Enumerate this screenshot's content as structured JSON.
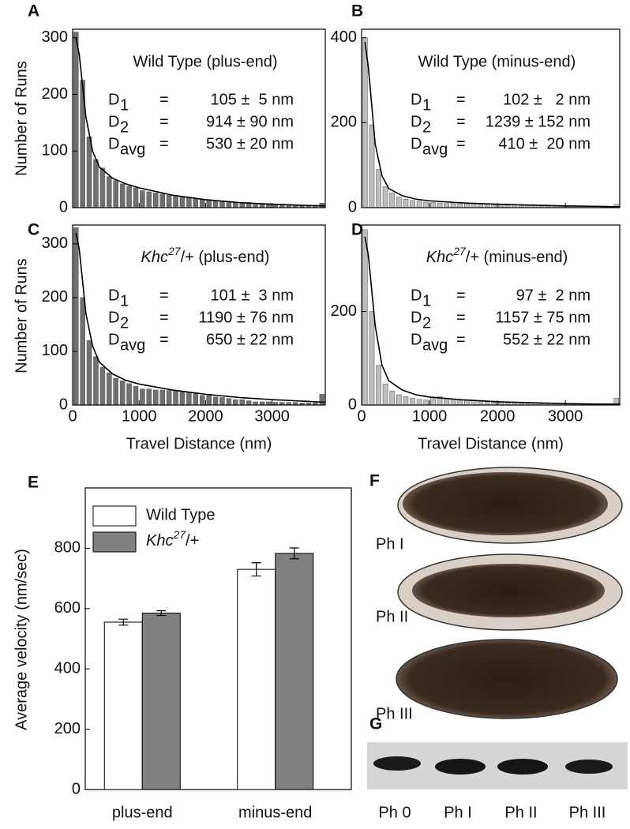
{
  "chart_data": [
    {
      "type": "histogram",
      "panel": "A",
      "title": "Wild Type (plus-end)",
      "ylabel": "Number of Runs",
      "color": "#707070",
      "bins": [
        0,
        100,
        200,
        300,
        400,
        500,
        600,
        700,
        800,
        900,
        1000,
        1100,
        1200,
        1300,
        1400,
        1500,
        1600,
        1700,
        1800,
        1900,
        2000,
        2100,
        2200,
        2300,
        2400,
        2500,
        2600,
        2700,
        2800,
        2900,
        3000,
        3100,
        3200,
        3300,
        3400,
        3500,
        3600,
        3700,
        3800
      ],
      "counts": [
        310,
        225,
        125,
        85,
        70,
        55,
        48,
        42,
        38,
        35,
        30,
        28,
        26,
        24,
        22,
        20,
        20,
        18,
        16,
        15,
        14,
        12,
        12,
        11,
        10,
        9,
        9,
        8,
        7,
        7,
        6,
        6,
        5,
        5,
        4,
        4,
        4,
        8
      ],
      "fit": {
        "x": [
          50,
          100,
          200,
          300,
          400,
          600,
          800,
          1000,
          1500,
          2000,
          2500,
          3000,
          3500,
          3800
        ],
        "y": [
          300,
          270,
          160,
          100,
          72,
          52,
          42,
          35,
          22,
          14,
          9,
          6,
          4,
          3
        ]
      },
      "xlim": [
        0,
        3800
      ],
      "xticks": [
        0,
        1000,
        2000,
        3000
      ],
      "show_xtick_labels": false,
      "ylim": [
        0,
        315
      ],
      "yticks": [
        0,
        100,
        200,
        300
      ],
      "stats": [
        {
          "symbol": "D",
          "subscript": "1",
          "equals": "=",
          "text": "105 ±  5 nm"
        },
        {
          "symbol": "D",
          "subscript": "2",
          "equals": "=",
          "text": "914 ± 90 nm"
        },
        {
          "symbol": "D",
          "subscript": "avg",
          "equals": "=",
          "text": "530 ± 20 nm"
        }
      ]
    },
    {
      "type": "histogram",
      "panel": "B",
      "title": "Wild Type (minus-end)",
      "color": "#bdbdbd",
      "bins": [
        0,
        100,
        200,
        300,
        400,
        500,
        600,
        700,
        800,
        900,
        1000,
        1100,
        1200,
        1300,
        1400,
        1500,
        1600,
        1700,
        1800,
        1900,
        2000,
        2100,
        2200,
        2300,
        2400,
        2500,
        2600,
        2700,
        2800,
        2900,
        3000,
        3100,
        3200,
        3300,
        3400,
        3500,
        3600,
        3700,
        3800
      ],
      "counts": [
        400,
        195,
        90,
        50,
        35,
        25,
        20,
        17,
        15,
        13,
        12,
        11,
        10,
        10,
        9,
        9,
        9,
        8,
        8,
        7,
        7,
        6,
        6,
        5,
        5,
        5,
        4,
        4,
        4,
        4,
        3,
        3,
        3,
        3,
        3,
        2,
        2,
        8
      ],
      "fit": {
        "x": [
          50,
          100,
          200,
          300,
          400,
          600,
          800,
          1000,
          1500,
          2000,
          2500,
          3000,
          3500,
          3800
        ],
        "y": [
          390,
          330,
          150,
          75,
          45,
          28,
          20,
          16,
          11,
          8,
          6,
          4,
          3,
          2
        ]
      },
      "xlim": [
        0,
        3800
      ],
      "xticks": [
        0,
        1000,
        2000,
        3000
      ],
      "show_xtick_labels": false,
      "ylim": [
        0,
        420
      ],
      "yticks": [
        0,
        200,
        400
      ],
      "stats": [
        {
          "symbol": "D",
          "subscript": "1",
          "equals": "=",
          "text": "102 ±   2 nm"
        },
        {
          "symbol": "D",
          "subscript": "2",
          "equals": "=",
          "text": "1239 ± 152 nm"
        },
        {
          "symbol": "D",
          "subscript": "avg",
          "equals": "=",
          "text": "410 ±  20 nm"
        }
      ]
    },
    {
      "type": "histogram",
      "panel": "C",
      "title": [
        "Khc",
        "27",
        "/+ (plus-end)"
      ],
      "ylabel": "Number of Runs",
      "xlabel": "Travel Distance (nm)",
      "color": "#707070",
      "bins": [
        0,
        100,
        200,
        300,
        400,
        500,
        600,
        700,
        800,
        900,
        1000,
        1100,
        1200,
        1300,
        1400,
        1500,
        1600,
        1700,
        1800,
        1900,
        2000,
        2100,
        2200,
        2300,
        2400,
        2500,
        2600,
        2700,
        2800,
        2900,
        3000,
        3100,
        3200,
        3300,
        3400,
        3500,
        3600,
        3700,
        3800
      ],
      "counts": [
        330,
        200,
        120,
        90,
        70,
        60,
        50,
        45,
        40,
        35,
        30,
        30,
        28,
        28,
        27,
        27,
        25,
        24,
        22,
        18,
        20,
        15,
        14,
        12,
        10,
        10,
        8,
        6,
        6,
        6,
        5,
        5,
        5,
        5,
        4,
        4,
        4,
        20
      ],
      "fit": {
        "x": [
          50,
          100,
          200,
          300,
          400,
          600,
          800,
          1000,
          1500,
          2000,
          2500,
          3000,
          3500,
          3800
        ],
        "y": [
          320,
          290,
          170,
          110,
          80,
          58,
          46,
          39,
          28,
          20,
          14,
          10,
          7,
          5
        ]
      },
      "xlim": [
        0,
        3800
      ],
      "xticks": [
        0,
        1000,
        2000,
        3000
      ],
      "show_xtick_labels": true,
      "ylim": [
        0,
        335
      ],
      "yticks": [
        0,
        100,
        200,
        300
      ],
      "stats": [
        {
          "symbol": "D",
          "subscript": "1",
          "equals": "=",
          "text": "101 ±  3 nm"
        },
        {
          "symbol": "D",
          "subscript": "2",
          "equals": "=",
          "text": "1190 ± 76 nm"
        },
        {
          "symbol": "D",
          "subscript": "avg",
          "equals": "=",
          "text": "650 ± 22 nm"
        }
      ]
    },
    {
      "type": "histogram",
      "panel": "D",
      "title": [
        "Khc",
        "27",
        "/+ (minus-end)"
      ],
      "xlabel": "Travel Distance (nm)",
      "color": "#bdbdbd",
      "bins": [
        0,
        100,
        200,
        300,
        400,
        500,
        600,
        700,
        800,
        900,
        1000,
        1100,
        1200,
        1300,
        1400,
        1500,
        1600,
        1700,
        1800,
        1900,
        2000,
        2100,
        2200,
        2300,
        2400,
        2500,
        2600,
        2700,
        2800,
        2900,
        3000,
        3100,
        3200,
        3300,
        3400,
        3500,
        3600,
        3700,
        3800
      ],
      "counts": [
        375,
        200,
        85,
        45,
        30,
        22,
        18,
        15,
        12,
        11,
        17,
        18,
        15,
        12,
        10,
        10,
        9,
        8,
        7,
        6,
        6,
        5,
        5,
        4,
        4,
        4,
        3,
        3,
        3,
        3,
        2,
        2,
        2,
        2,
        2,
        2,
        2,
        15
      ],
      "fit": {
        "x": [
          50,
          100,
          200,
          300,
          400,
          600,
          800,
          1000,
          1500,
          2000,
          2500,
          3000,
          3500,
          3800
        ],
        "y": [
          360,
          320,
          170,
          85,
          52,
          32,
          22,
          17,
          11,
          7,
          5,
          3,
          2,
          2
        ]
      },
      "xlim": [
        0,
        3800
      ],
      "xticks": [
        0,
        1000,
        2000,
        3000
      ],
      "show_xtick_labels": true,
      "ylim": [
        0,
        385
      ],
      "yticks": [
        0,
        200
      ],
      "stats": [
        {
          "symbol": "D",
          "subscript": "1",
          "equals": "=",
          "text": "97 ±  2 nm"
        },
        {
          "symbol": "D",
          "subscript": "2",
          "equals": "=",
          "text": "1157 ± 75 nm"
        },
        {
          "symbol": "D",
          "subscript": "avg",
          "equals": "=",
          "text": "552 ± 22 nm"
        }
      ]
    },
    {
      "type": "bar",
      "panel": "E",
      "ylabel": "Average velocity (nm/sec)",
      "categories": [
        "plus-end",
        "minus-end"
      ],
      "series": [
        {
          "name": "Wild Type",
          "color": "#ffffff",
          "values": [
            555,
            730
          ],
          "errors": [
            10,
            22
          ]
        },
        {
          "name": [
            "Khc",
            "27",
            "/+"
          ],
          "color": "#808080",
          "values": [
            585,
            783
          ],
          "errors": [
            8,
            18
          ]
        }
      ],
      "ylim": [
        0,
        1000
      ],
      "yticks": [
        0,
        200,
        400,
        600,
        800
      ]
    }
  ],
  "panel_f": {
    "letter": "F",
    "labels": [
      "Ph I",
      "Ph II",
      "Ph III"
    ]
  },
  "panel_g": {
    "letter": "G",
    "labels": [
      "Ph 0",
      "Ph I",
      "Ph II",
      "Ph III"
    ]
  }
}
